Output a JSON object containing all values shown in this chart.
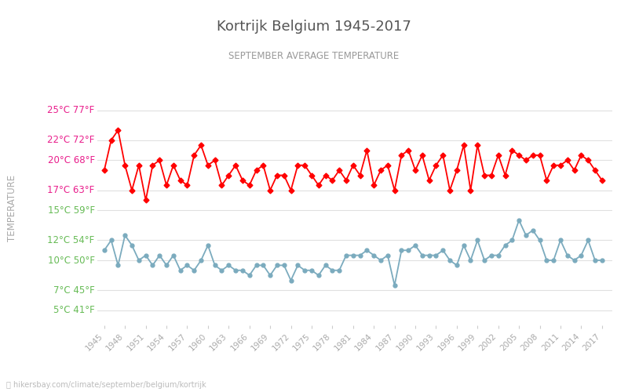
{
  "title": "Kortrijk Belgium 1945-2017",
  "subtitle": "SEPTEMBER AVERAGE TEMPERATURE",
  "ylabel": "TEMPERATURE",
  "xlabel_url": "hikersbay.com/climate/september/belgium/kortrijk",
  "years": [
    1945,
    1946,
    1947,
    1948,
    1949,
    1950,
    1951,
    1952,
    1953,
    1954,
    1955,
    1956,
    1957,
    1958,
    1959,
    1960,
    1961,
    1962,
    1963,
    1964,
    1965,
    1966,
    1967,
    1968,
    1969,
    1970,
    1971,
    1972,
    1973,
    1974,
    1975,
    1976,
    1977,
    1978,
    1979,
    1980,
    1981,
    1982,
    1983,
    1984,
    1985,
    1986,
    1987,
    1988,
    1989,
    1990,
    1991,
    1992,
    1993,
    1994,
    1995,
    1996,
    1997,
    1998,
    1999,
    2000,
    2001,
    2002,
    2003,
    2004,
    2005,
    2006,
    2007,
    2008,
    2009,
    2010,
    2011,
    2012,
    2013,
    2014,
    2015,
    2016,
    2017
  ],
  "day_temps": [
    19.0,
    22.0,
    23.0,
    19.5,
    17.0,
    19.5,
    16.0,
    19.5,
    20.0,
    17.5,
    19.5,
    18.0,
    17.5,
    20.5,
    21.5,
    19.5,
    20.0,
    17.5,
    18.5,
    19.5,
    18.0,
    17.5,
    19.0,
    19.5,
    17.0,
    18.5,
    18.5,
    17.0,
    19.5,
    19.5,
    18.5,
    17.5,
    18.5,
    18.0,
    19.0,
    18.0,
    19.5,
    18.5,
    21.0,
    17.5,
    19.0,
    19.5,
    17.0,
    20.5,
    21.0,
    19.0,
    20.5,
    18.0,
    19.5,
    20.5,
    17.0,
    19.0,
    21.5,
    17.0,
    21.5,
    18.5,
    18.5,
    20.5,
    18.5,
    21.0,
    20.5,
    20.0,
    20.5,
    20.5,
    18.0,
    19.5,
    19.5,
    20.0,
    19.0,
    20.5,
    20.0,
    19.0,
    18.0
  ],
  "night_temps": [
    11.0,
    12.0,
    9.5,
    12.5,
    11.5,
    10.0,
    10.5,
    9.5,
    10.5,
    9.5,
    10.5,
    9.0,
    9.5,
    9.0,
    10.0,
    11.5,
    9.5,
    9.0,
    9.5,
    9.0,
    9.0,
    8.5,
    9.5,
    9.5,
    8.5,
    9.5,
    9.5,
    8.0,
    9.5,
    9.0,
    9.0,
    8.5,
    9.5,
    9.0,
    9.0,
    10.5,
    10.5,
    10.5,
    11.0,
    10.5,
    10.0,
    10.5,
    7.5,
    11.0,
    11.0,
    11.5,
    10.5,
    10.5,
    10.5,
    11.0,
    10.0,
    9.5,
    11.5,
    10.0,
    12.0,
    10.0,
    10.5,
    10.5,
    11.5,
    12.0,
    14.0,
    12.5,
    13.0,
    12.0,
    10.0,
    10.0,
    12.0,
    10.5,
    10.0,
    10.5,
    12.0,
    10.0,
    10.0
  ],
  "day_color": "#ff0000",
  "night_color": "#7babbe",
  "day_marker": "D",
  "night_marker": "o",
  "marker_size": 3.5,
  "line_width": 1.3,
  "title_color": "#555555",
  "subtitle_color": "#999999",
  "ylabel_color": "#aaaaaa",
  "pink_color": "#e91e8c",
  "green_color": "#66bb55",
  "background_color": "#ffffff",
  "grid_color": "#e0e0e0",
  "yticks_c": [
    5,
    7,
    10,
    12,
    15,
    17,
    20,
    22,
    25
  ],
  "yticks_f": [
    41,
    45,
    50,
    54,
    59,
    63,
    68,
    72,
    77
  ],
  "pink_threshold": 17,
  "ylim": [
    3.5,
    27
  ],
  "xlim": [
    1944,
    2018.5
  ]
}
